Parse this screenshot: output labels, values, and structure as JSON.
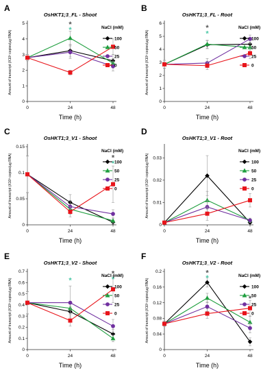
{
  "figure": {
    "x_axis_label": "Time (h)",
    "legend_title": "NaCl (mM)"
  },
  "chart_data": [
    {
      "type": "line",
      "panel": "A",
      "title": "OsHKT1;3_FL - Shoot",
      "xlabel": "Time (h)",
      "ylabel": "Amount of transcript (X10³ copies/µg RNA)",
      "x": [
        0,
        24,
        48
      ],
      "ylim": [
        0,
        5
      ],
      "yticks": [
        0,
        1,
        2,
        3,
        4,
        5
      ],
      "yticklabels": [
        "0",
        "1",
        "2",
        "3",
        "4",
        "5"
      ],
      "legend_title": "NaCl (mM)",
      "series": [
        {
          "name": "100",
          "color": "#000000",
          "marker": "diamond",
          "values": [
            2.8,
            3.25,
            2.6
          ],
          "errors": [
            0.2,
            0.4,
            0.4
          ]
        },
        {
          "name": "50",
          "color": "#1e9e3e",
          "marker": "triangle",
          "values": [
            2.8,
            4.05,
            2.45
          ],
          "errors": [
            0.2,
            0.45,
            0.3
          ]
        },
        {
          "name": "25",
          "color": "#7030a0",
          "marker": "circle",
          "values": [
            2.8,
            3.15,
            2.25
          ],
          "errors": [
            0.2,
            0.4,
            0.3
          ]
        },
        {
          "name": "0",
          "color": "#e8151b",
          "marker": "square",
          "values": [
            2.8,
            1.85,
            3.5
          ],
          "errors": [
            0.2,
            0.15,
            0.5
          ]
        }
      ],
      "annotations": [
        {
          "x": 24,
          "text": "*",
          "color": "#555555",
          "y": 5.0
        },
        {
          "x": 24,
          "text": "*",
          "color": "#4fc8a8",
          "y": 4.65
        }
      ]
    },
    {
      "type": "line",
      "panel": "B",
      "title": "OsHKT1;3_FL - Root",
      "xlabel": "Time (h)",
      "ylabel": "Amount of transcript (X10³ copies/µg RNA)",
      "x": [
        0,
        24,
        48
      ],
      "ylim": [
        0,
        6
      ],
      "yticks": [
        0,
        1,
        2,
        3,
        4,
        5,
        6
      ],
      "yticklabels": [
        "0",
        "1",
        "2",
        "3",
        "4",
        "5",
        "6"
      ],
      "legend_title": "NaCl (mM)",
      "series": [
        {
          "name": "100",
          "color": "#000000",
          "marker": "diamond",
          "values": [
            2.85,
            4.35,
            4.4
          ],
          "errors": [
            0.3,
            0.3,
            0.3
          ]
        },
        {
          "name": "50",
          "color": "#1e9e3e",
          "marker": "triangle",
          "values": [
            2.85,
            4.4,
            4.15
          ],
          "errors": [
            0.3,
            0.3,
            0.3
          ]
        },
        {
          "name": "25",
          "color": "#7030a0",
          "marker": "circle",
          "values": [
            2.85,
            2.95,
            4.8
          ],
          "errors": [
            0.3,
            0.35,
            0.3
          ]
        },
        {
          "name": "0",
          "color": "#e8151b",
          "marker": "square",
          "values": [
            2.85,
            2.75,
            3.7
          ],
          "errors": [
            0.3,
            0.3,
            0.4
          ]
        }
      ],
      "annotations": [
        {
          "x": 24,
          "text": "*",
          "color": "#555555",
          "y": 5.75
        },
        {
          "x": 24,
          "text": "*",
          "color": "#4fc8a8",
          "y": 5.3
        }
      ]
    },
    {
      "type": "line",
      "panel": "C",
      "title": "OsHKT1;3_V1 - Shoot",
      "xlabel": "Time (h)",
      "ylabel": "Amount of transcript (X10³ copies/µg RNA)",
      "x": [
        0,
        24,
        48
      ],
      "ylim": [
        0,
        0.15
      ],
      "yticks": [
        0,
        0.05,
        0.1,
        0.15
      ],
      "yticklabels": [
        "0",
        "0.05",
        "0.1",
        "0.15"
      ],
      "legend_title": "NaCl (mM)",
      "series": [
        {
          "name": "100",
          "color": "#000000",
          "marker": "diamond",
          "values": [
            0.097,
            0.043,
            0.005
          ],
          "errors": [
            0.035,
            0.015,
            0.004
          ]
        },
        {
          "name": "50",
          "color": "#1e9e3e",
          "marker": "triangle",
          "values": [
            0.097,
            0.03,
            0.008
          ],
          "errors": [
            0.035,
            0.01,
            0.005
          ]
        },
        {
          "name": "25",
          "color": "#7030a0",
          "marker": "circle",
          "values": [
            0.097,
            0.035,
            0.021
          ],
          "errors": [
            0.035,
            0.012,
            0.008
          ]
        },
        {
          "name": "0",
          "color": "#e8151b",
          "marker": "square",
          "values": [
            0.097,
            0.025,
            0.078
          ],
          "errors": [
            0.035,
            0.01,
            0.035
          ]
        }
      ],
      "annotations": [
        {
          "x": 48,
          "text": "*",
          "color": "#555555",
          "y": 0.131
        },
        {
          "x": 48,
          "text": "*",
          "color": "#4fc8a8",
          "y": 0.12
        }
      ]
    },
    {
      "type": "line",
      "panel": "D",
      "title": "OsHKT1;3_V1 - Root",
      "xlabel": "Time (h)",
      "ylabel": "Amount of transcript (X10³ copies/µg RNA)",
      "x": [
        0,
        24,
        48
      ],
      "ylim": [
        0,
        0.035
      ],
      "yticks": [
        0,
        0.01,
        0.02,
        0.03
      ],
      "yticklabels": [
        "0",
        "0.01",
        "0.02",
        "0.03"
      ],
      "legend_title": "NaCl (mM)",
      "series": [
        {
          "name": "100",
          "color": "#000000",
          "marker": "diamond",
          "values": [
            0.001,
            0.022,
            0.001
          ],
          "errors": [
            0.0005,
            0.009,
            0.0005
          ]
        },
        {
          "name": "50",
          "color": "#1e9e3e",
          "marker": "triangle",
          "values": [
            0.001,
            0.011,
            0.002
          ],
          "errors": [
            0.0005,
            0.004,
            0.001
          ]
        },
        {
          "name": "25",
          "color": "#7030a0",
          "marker": "circle",
          "values": [
            0.001,
            0.008,
            0.002
          ],
          "errors": [
            0.0005,
            0.003,
            0.001
          ]
        },
        {
          "name": "0",
          "color": "#e8151b",
          "marker": "square",
          "values": [
            0.001,
            0.005,
            0.011
          ],
          "errors": [
            0.0005,
            0.003,
            0.003
          ]
        }
      ],
      "annotations": []
    },
    {
      "type": "line",
      "panel": "E",
      "title": "OsHKT1;3_V2 - Shoot",
      "xlabel": "Time (h)",
      "ylabel": "Amount of transcript (X10³ copies/µg RNA)",
      "x": [
        0,
        24,
        48
      ],
      "ylim": [
        0,
        0.7
      ],
      "yticks": [
        0,
        0.1,
        0.2,
        0.3,
        0.4,
        0.5,
        0.6,
        0.7
      ],
      "yticklabels": [
        "0",
        "0.1",
        "0.2",
        "0.3",
        "0.4",
        "0.5",
        "0.6",
        "0.7"
      ],
      "legend_title": "NaCl (mM)",
      "series": [
        {
          "name": "100",
          "color": "#000000",
          "marker": "diamond",
          "values": [
            0.42,
            0.34,
            0.14
          ],
          "errors": [
            0.1,
            0.05,
            0.04
          ]
        },
        {
          "name": "50",
          "color": "#1e9e3e",
          "marker": "triangle",
          "values": [
            0.42,
            0.37,
            0.1
          ],
          "errors": [
            0.1,
            0.05,
            0.03
          ]
        },
        {
          "name": "25",
          "color": "#7030a0",
          "marker": "circle",
          "values": [
            0.42,
            0.42,
            0.21
          ],
          "errors": [
            0.1,
            0.15,
            0.06
          ]
        },
        {
          "name": "0",
          "color": "#e8151b",
          "marker": "square",
          "values": [
            0.42,
            0.26,
            0.54
          ],
          "errors": [
            0.1,
            0.05,
            0.12
          ]
        }
      ],
      "annotations": [
        {
          "x": 24,
          "text": "*",
          "color": "#4fc8a8",
          "y": 0.63
        },
        {
          "x": 48,
          "text": "*",
          "color": "#555555",
          "y": 0.69
        },
        {
          "x": 48,
          "text": "*",
          "color": "#4fc8a8",
          "y": 0.64
        }
      ]
    },
    {
      "type": "line",
      "panel": "F",
      "title": "OsHKT1;3_V2 - Root",
      "xlabel": "Time (h)",
      "ylabel": "Amount of transcript (X10³ copies/µg RNA)",
      "x": [
        0,
        24,
        48
      ],
      "ylim": [
        0,
        0.2
      ],
      "yticks": [
        0,
        0.04,
        0.08,
        0.12,
        0.16,
        0.2
      ],
      "yticklabels": [
        "0",
        "0.04",
        "0.08",
        "0.12",
        "0.16",
        "0.2"
      ],
      "legend_title": "NaCl (mM)",
      "series": [
        {
          "name": "100",
          "color": "#000000",
          "marker": "diamond",
          "values": [
            0.066,
            0.172,
            0.02
          ],
          "errors": [
            0.006,
            0.012,
            0.01
          ]
        },
        {
          "name": "50",
          "color": "#1e9e3e",
          "marker": "triangle",
          "values": [
            0.066,
            0.132,
            0.07
          ],
          "errors": [
            0.006,
            0.012,
            0.015
          ]
        },
        {
          "name": "25",
          "color": "#7030a0",
          "marker": "circle",
          "values": [
            0.066,
            0.11,
            0.055
          ],
          "errors": [
            0.006,
            0.012,
            0.012
          ]
        },
        {
          "name": "0",
          "color": "#e8151b",
          "marker": "square",
          "values": [
            0.066,
            0.092,
            0.106
          ],
          "errors": [
            0.006,
            0.012,
            0.02
          ]
        }
      ],
      "annotations": [
        {
          "x": 24,
          "text": "*",
          "color": "#555555",
          "y": 0.199
        },
        {
          "x": 24,
          "text": "*",
          "color": "#4fc8a8",
          "y": 0.186
        },
        {
          "x": 48,
          "text": "*",
          "color": "#555555",
          "y": 0.133
        }
      ]
    }
  ]
}
